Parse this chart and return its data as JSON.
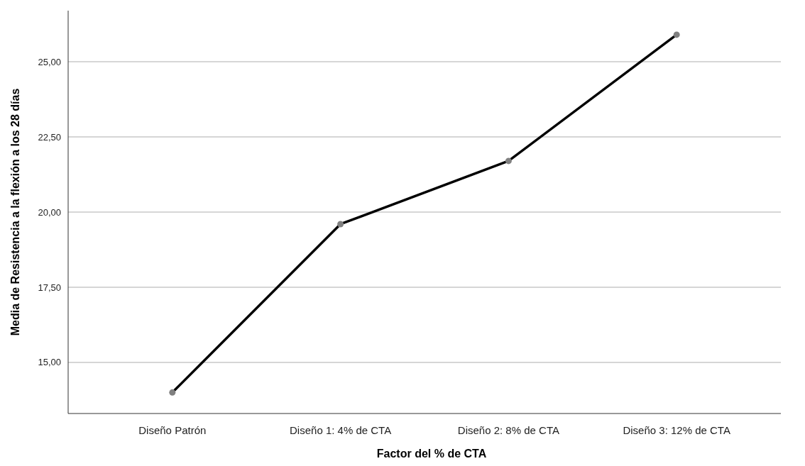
{
  "chart_data": {
    "type": "line",
    "xlabel": "Factor del % de CTA",
    "ylabel": "Media de Resistencia a la flexión a los 28 días",
    "categories": [
      "Diseño Patrón",
      "Diseño 1: 4% de CTA",
      "Diseño 2: 8% de CTA",
      "Diseño 3: 12% de CTA"
    ],
    "series": [
      {
        "color": "#000000",
        "values": [
          14.0,
          19.6,
          21.7,
          25.9
        ]
      }
    ],
    "ylim": [
      13.3,
      26.7
    ],
    "yticks": [
      {
        "value": 15,
        "label": "15,00"
      },
      {
        "value": 17.5,
        "label": "17,50"
      },
      {
        "value": 20,
        "label": "20,00"
      },
      {
        "value": 22.5,
        "label": "22,50"
      },
      {
        "value": 25,
        "label": "25,00"
      }
    ],
    "grid": "y",
    "marker": "circle",
    "line_style": "solid"
  }
}
